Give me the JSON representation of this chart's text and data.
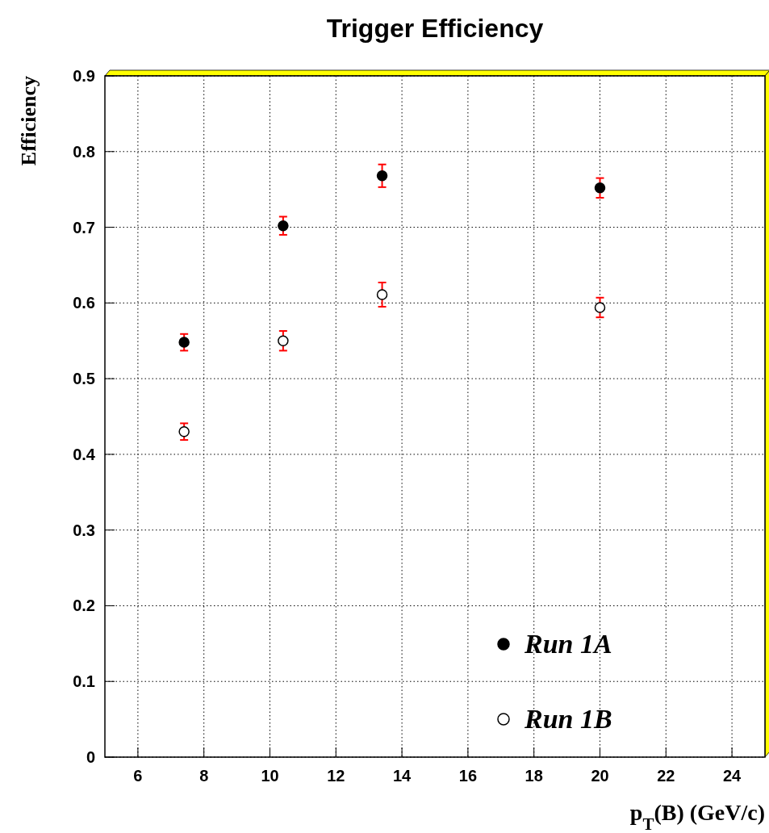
{
  "chart_data": {
    "type": "scatter",
    "title": "Trigger Efficiency",
    "xlabel": "p$_{T}$(B) (GeV/c)",
    "ylabel": "Efficiency",
    "xlim": [
      5,
      25
    ],
    "xticks": [
      6,
      8,
      10,
      12,
      14,
      16,
      18,
      20,
      22,
      24
    ],
    "ylim": [
      0,
      0.9
    ],
    "yticks": [
      0,
      0.1,
      0.2,
      0.3,
      0.4,
      0.5,
      0.6,
      0.7,
      0.8,
      0.9
    ],
    "grid": true,
    "legend": "bottom right",
    "series": [
      {
        "name": "Run 1A",
        "color": "#000000",
        "marker": "circle",
        "x": [
          7.4,
          10.4,
          13.4,
          20
        ],
        "values": [
          0.548,
          0.702,
          0.768,
          0.752
        ],
        "errors": [
          0.011,
          0.012,
          0.015,
          0.013
        ]
      },
      {
        "name": "Run 1B",
        "color": "#ffffff",
        "marker": "circle",
        "x": [
          7.4,
          10.4,
          13.4,
          20
        ],
        "values": [
          0.43,
          0.55,
          0.611,
          0.594
        ],
        "errors": [
          0.011,
          0.013,
          0.016,
          0.013
        ]
      }
    ]
  }
}
